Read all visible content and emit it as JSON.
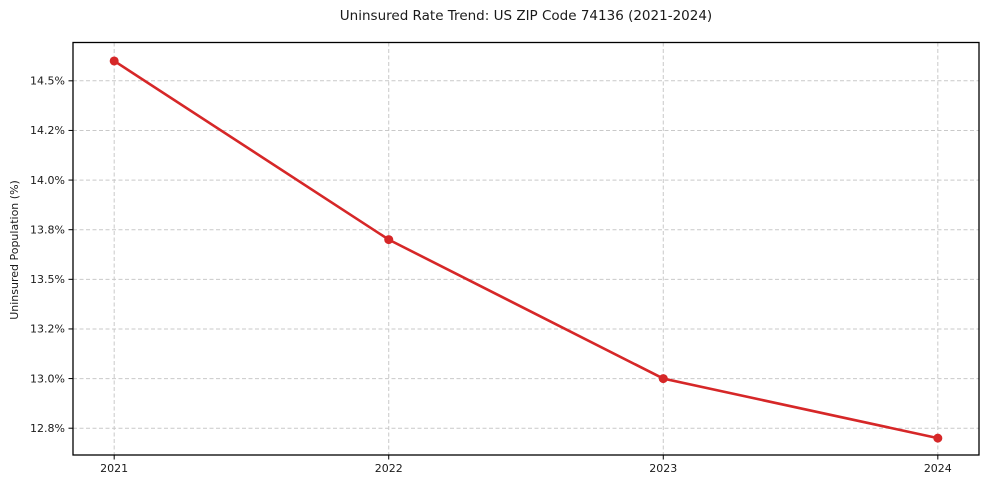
{
  "chart_data": {
    "type": "line",
    "title": "Uninsured Rate Trend: US ZIP Code 74136 (2021-2024)",
    "xlabel": "",
    "ylabel": "Uninsured Population (%)",
    "categories": [
      "2021",
      "2022",
      "2023",
      "2024"
    ],
    "x": [
      2021,
      2022,
      2023,
      2024
    ],
    "values": [
      14.6,
      13.7,
      13.0,
      12.7
    ],
    "yticks": [
      12.75,
      13.0,
      13.25,
      13.5,
      13.75,
      14.0,
      14.25,
      14.5
    ],
    "ytick_labels": [
      "12.8%",
      "13.0%",
      "13.2%",
      "13.5%",
      "13.8%",
      "14.0%",
      "14.2%",
      "14.5%"
    ],
    "ylim": [
      12.615,
      14.693
    ],
    "xlim": [
      2020.85,
      2024.15
    ],
    "grid": true,
    "grid_style": "dashed",
    "legend": "none",
    "marker": "circle",
    "colors": {
      "line": "#d62728",
      "marker": "#d62728",
      "grid": "#c9c9c9",
      "axis": "#000000",
      "text": "#1a1a1a",
      "background": "#ffffff"
    }
  }
}
